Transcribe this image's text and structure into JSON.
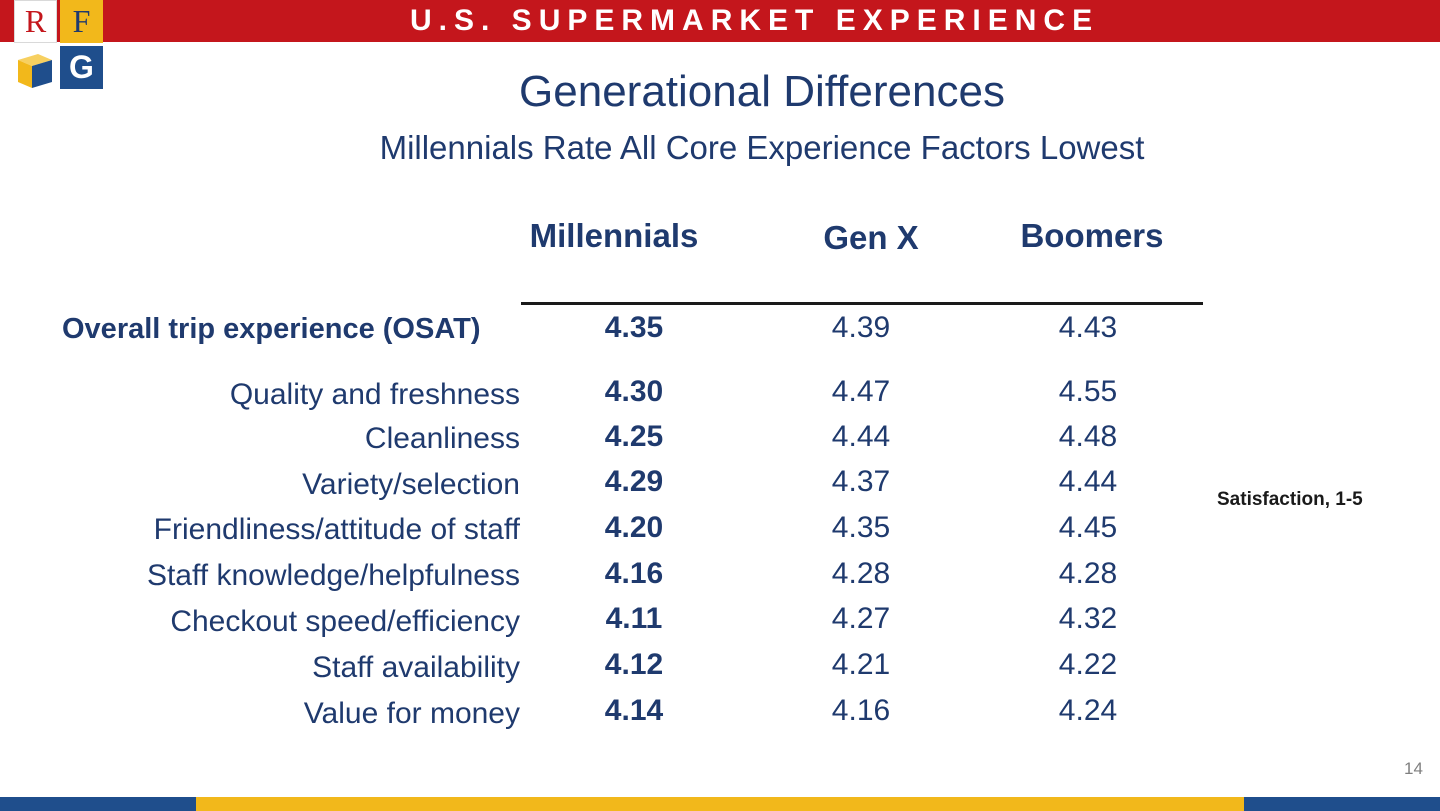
{
  "banner": {
    "title": "U.S. SUPERMARKET EXPERIENCE"
  },
  "logo": {
    "letter_r": "R",
    "letter_f": "F",
    "letter_g": "G",
    "icon": "cube-icon"
  },
  "heading": {
    "title": "Generational Differences",
    "subtitle": "Millennials Rate All Core Experience Factors Lowest"
  },
  "table": {
    "columns": [
      "Millennials",
      "Gen X",
      "Boomers"
    ],
    "rows": [
      {
        "label": "Overall trip experience (OSAT)",
        "values": [
          "4.35",
          "4.39",
          "4.43"
        ]
      },
      {
        "label": "Quality and freshness",
        "values": [
          "4.30",
          "4.47",
          "4.55"
        ]
      },
      {
        "label": "Cleanliness",
        "values": [
          "4.25",
          "4.44",
          "4.48"
        ]
      },
      {
        "label": "Variety/selection",
        "values": [
          "4.29",
          "4.37",
          "4.44"
        ]
      },
      {
        "label": "Friendliness/attitude of staff",
        "values": [
          "4.20",
          "4.35",
          "4.45"
        ]
      },
      {
        "label": "Staff knowledge/helpfulness",
        "values": [
          "4.16",
          "4.28",
          "4.28"
        ]
      },
      {
        "label": "Checkout speed/efficiency",
        "values": [
          "4.11",
          "4.27",
          "4.32"
        ]
      },
      {
        "label": "Staff availability",
        "values": [
          "4.12",
          "4.21",
          "4.22"
        ]
      },
      {
        "label": "Value for money",
        "values": [
          "4.14",
          "4.16",
          "4.24"
        ]
      }
    ]
  },
  "scale_note": "Satisfaction, 1-5",
  "page_number": "14",
  "colors": {
    "banner_red": "#c4161c",
    "navy": "#1f3a6e",
    "gold": "#f2b81b",
    "blue": "#1f4e8c"
  }
}
